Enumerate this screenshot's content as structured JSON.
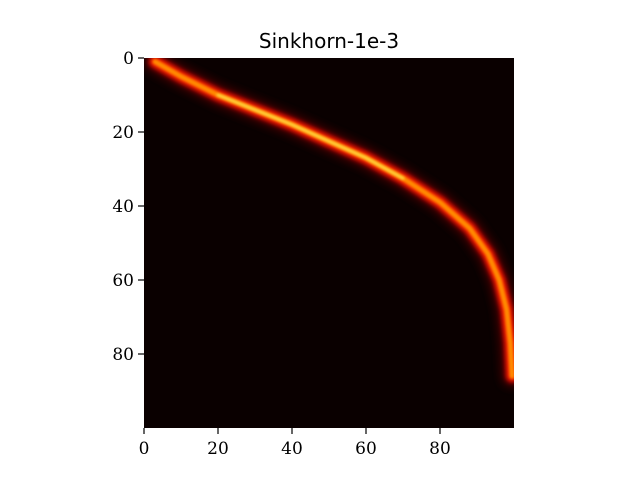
{
  "chart_data": {
    "type": "heatmap",
    "title": "Sinkhorn-1e-3",
    "xlabel": "",
    "ylabel": "",
    "xlim": [
      0,
      100
    ],
    "ylim": [
      0,
      100
    ],
    "x_ticks": [
      0,
      20,
      40,
      60,
      80
    ],
    "y_ticks": [
      0,
      20,
      40,
      60,
      80
    ],
    "x_tick_labels": [
      "0",
      "20",
      "40",
      "60",
      "80"
    ],
    "y_tick_labels": [
      "0",
      "20",
      "40",
      "60",
      "80"
    ],
    "y_axis_inverted": true,
    "colormap": "hot",
    "grid": false,
    "background_color": "#0a0000",
    "transport_ridge": {
      "description": "plan support along a monotone curve from top-left to bottom-right",
      "points": [
        {
          "col": 3,
          "row": 1
        },
        {
          "col": 10,
          "row": 5
        },
        {
          "col": 20,
          "row": 10
        },
        {
          "col": 30,
          "row": 14
        },
        {
          "col": 40,
          "row": 18
        },
        {
          "col": 50,
          "row": 22.5
        },
        {
          "col": 60,
          "row": 27
        },
        {
          "col": 70,
          "row": 32.5
        },
        {
          "col": 80,
          "row": 39
        },
        {
          "col": 88,
          "row": 46
        },
        {
          "col": 93,
          "row": 53
        },
        {
          "col": 96,
          "row": 60
        },
        {
          "col": 98,
          "row": 68
        },
        {
          "col": 99,
          "row": 77
        },
        {
          "col": 99.5,
          "row": 86
        }
      ],
      "peak_intensity_index": 5
    }
  }
}
